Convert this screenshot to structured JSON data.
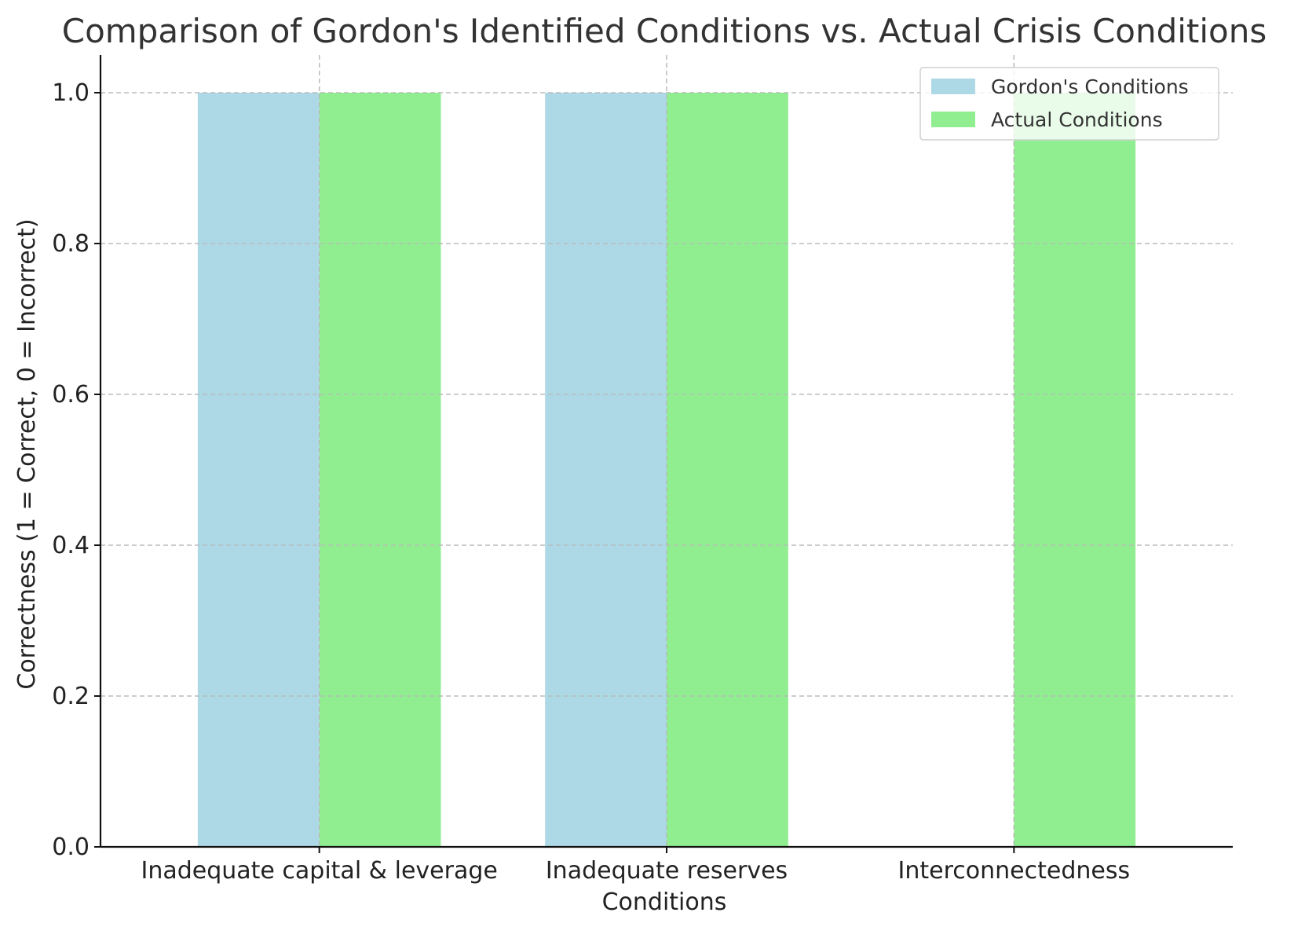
{
  "chart_data": {
    "type": "bar",
    "title": "Comparison of Gordon's Identified Conditions vs. Actual Crisis Conditions",
    "xlabel": "Conditions",
    "ylabel": "Correctness (1 = Correct, 0 = Incorrect)",
    "categories": [
      "Inadequate capital & leverage",
      "Inadequate reserves",
      "Interconnectedness"
    ],
    "series": [
      {
        "name": "Gordon's Conditions",
        "values": [
          1,
          1,
          0
        ],
        "color": "#add8e6"
      },
      {
        "name": "Actual Conditions",
        "values": [
          1,
          1,
          1
        ],
        "color": "#90ee90"
      }
    ],
    "ylim": [
      0,
      1.05
    ],
    "yticks": [
      "0.0",
      "0.2",
      "0.4",
      "0.6",
      "0.8",
      "1.0"
    ],
    "grid": true,
    "legend_position": "top-right"
  }
}
